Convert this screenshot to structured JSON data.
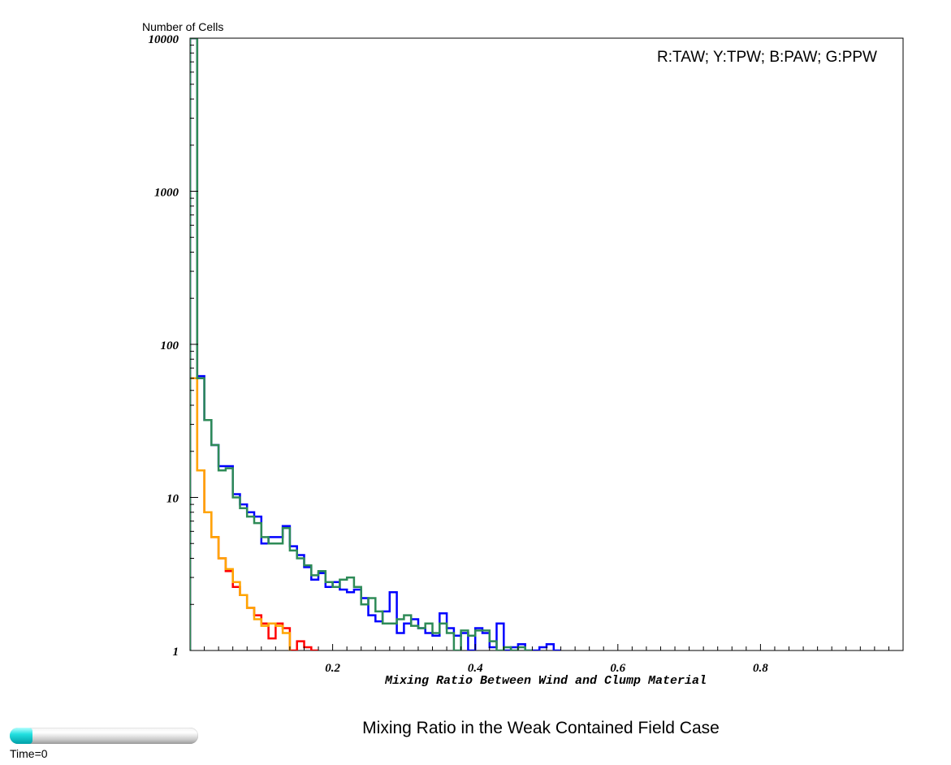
{
  "chart_data": {
    "type": "line",
    "step": true,
    "title": "Mixing Ratio in the Weak Contained Field Case",
    "xlabel": "Mixing Ratio Between Wind and Clump Material",
    "ylabel": "Number of Cells",
    "legend_text": "R:TAW; Y:TPW; B:PAW; G:PPW",
    "legend_position": "top-right",
    "xlim": [
      0.0,
      1.0
    ],
    "ylim": [
      1,
      10000
    ],
    "yscale": "log",
    "grid": false,
    "x_ticks": [
      "0.2",
      "0.4",
      "0.6",
      "0.8"
    ],
    "y_ticks": [
      "1",
      "10",
      "100",
      "1000",
      "10000"
    ],
    "bin_width": 0.01,
    "series": [
      {
        "color": "#ff0000",
        "x": [
          0.005,
          0.015,
          0.025,
          0.035,
          0.045,
          0.055,
          0.065,
          0.075,
          0.085,
          0.095,
          0.105,
          0.115,
          0.125,
          0.135,
          0.145,
          0.155,
          0.165,
          0.175
        ],
        "y": [
          10000,
          15,
          8,
          5.5,
          4,
          3.3,
          2.6,
          2.3,
          1.9,
          1.7,
          1.5,
          1.2,
          1.5,
          1.4,
          1.0,
          1.15,
          1.05,
          1.0
        ]
      },
      {
        "color": "#ffa500",
        "x": [
          0.005,
          0.015,
          0.025,
          0.035,
          0.045,
          0.055,
          0.065,
          0.075,
          0.085,
          0.095,
          0.105,
          0.115,
          0.125,
          0.135
        ],
        "y": [
          60,
          15,
          8,
          5.5,
          4,
          3.4,
          2.8,
          2.3,
          1.9,
          1.6,
          1.45,
          1.5,
          1.45,
          1.3
        ]
      },
      {
        "color": "#0000ff",
        "x": [
          0.005,
          0.015,
          0.025,
          0.035,
          0.045,
          0.055,
          0.065,
          0.075,
          0.085,
          0.095,
          0.105,
          0.115,
          0.125,
          0.135,
          0.145,
          0.155,
          0.165,
          0.175,
          0.185,
          0.195,
          0.205,
          0.215,
          0.225,
          0.235,
          0.245,
          0.255,
          0.265,
          0.275,
          0.285,
          0.295,
          0.305,
          0.315,
          0.325,
          0.335,
          0.345,
          0.355,
          0.365,
          0.375,
          0.385,
          0.395,
          0.405,
          0.415,
          0.425,
          0.435,
          0.445,
          0.455,
          0.465,
          0.475,
          0.485,
          0.495,
          0.505,
          0.515
        ],
        "y": [
          10000,
          62,
          32,
          22,
          16,
          16,
          10.5,
          9,
          8,
          7.5,
          5,
          5.5,
          5.5,
          6.5,
          4.8,
          4.2,
          3.5,
          2.9,
          3.2,
          2.6,
          2.8,
          2.5,
          2.4,
          2.5,
          2.2,
          1.7,
          1.55,
          1.8,
          2.4,
          1.3,
          1.5,
          1.6,
          1.4,
          1.3,
          1.25,
          1.75,
          1.4,
          1.25,
          1.3,
          1.0,
          1.4,
          1.3,
          1.05,
          1.5,
          1.0,
          1.05,
          1.1,
          1.0,
          1.0,
          1.05,
          1.1,
          1.0
        ]
      },
      {
        "color": "#2e8b57",
        "x": [
          0.005,
          0.015,
          0.025,
          0.035,
          0.045,
          0.055,
          0.065,
          0.075,
          0.085,
          0.095,
          0.105,
          0.115,
          0.125,
          0.135,
          0.145,
          0.155,
          0.165,
          0.175,
          0.185,
          0.195,
          0.205,
          0.215,
          0.225,
          0.235,
          0.245,
          0.255,
          0.265,
          0.275,
          0.285,
          0.295,
          0.305,
          0.315,
          0.325,
          0.335,
          0.345,
          0.355,
          0.365,
          0.375,
          0.385,
          0.395,
          0.405,
          0.415,
          0.425,
          0.435,
          0.445,
          0.455,
          0.465,
          0.475
        ],
        "y": [
          10000,
          60,
          32,
          22,
          15,
          15.5,
          10,
          8.5,
          7.5,
          6.8,
          5.5,
          5,
          5,
          6.3,
          4.5,
          4,
          3.6,
          3.1,
          3.3,
          2.8,
          2.6,
          2.9,
          3,
          2.6,
          2.0,
          2.2,
          1.8,
          1.5,
          1.5,
          1.6,
          1.7,
          1.45,
          1.4,
          1.5,
          1.3,
          1.5,
          1.3,
          1.0,
          1.35,
          1.25,
          1.35,
          1.35,
          1.15,
          1.0,
          1.05,
          1.0,
          1.05,
          1.0
        ]
      }
    ]
  },
  "time_label": "Time=0",
  "time_progress": 0.0
}
